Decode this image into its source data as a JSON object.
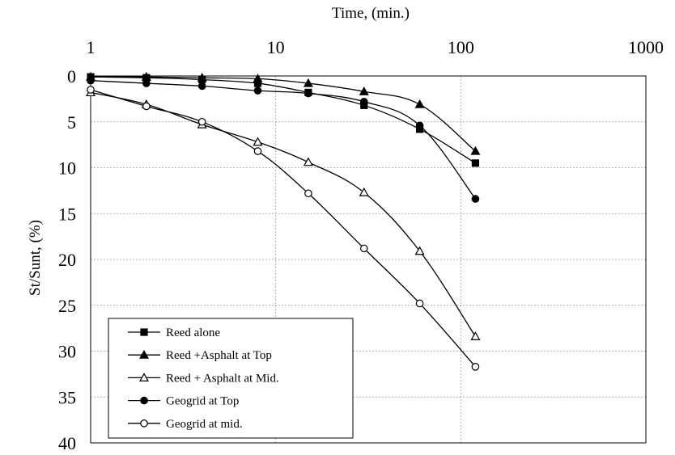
{
  "chart_data": {
    "type": "line",
    "xlabel": "Time, (min.)",
    "ylabel": "St/Sunt, (%)",
    "x_scale": "log",
    "xlim": [
      1,
      1000
    ],
    "ylim": [
      40,
      0
    ],
    "y_inverted": true,
    "x_ticks": [
      "1",
      "10",
      "100",
      "1000"
    ],
    "y_ticks": [
      "0",
      "5",
      "10",
      "15",
      "20",
      "25",
      "30",
      "35",
      "40"
    ],
    "grid": true,
    "legend_position": "bottom-left",
    "series": [
      {
        "name": "Reed alone",
        "marker": "filled-square",
        "x": [
          1,
          2,
          4,
          8,
          15,
          30,
          60,
          120
        ],
        "y": [
          0.1,
          0.2,
          0.4,
          0.8,
          1.8,
          3.2,
          5.8,
          9.5
        ]
      },
      {
        "name": "Reed +Asphalt at Top",
        "marker": "filled-triangle",
        "x": [
          1,
          2,
          4,
          8,
          15,
          30,
          60,
          120
        ],
        "y": [
          0.1,
          0.1,
          0.2,
          0.3,
          0.8,
          1.7,
          3.1,
          8.2
        ]
      },
      {
        "name": "Reed + Asphalt at Mid.",
        "marker": "open-triangle",
        "x": [
          1,
          2,
          4,
          8,
          15,
          30,
          60,
          120
        ],
        "y": [
          1.8,
          3.1,
          5.3,
          7.2,
          9.4,
          12.7,
          19.1,
          28.4
        ]
      },
      {
        "name": "Geogrid at Top",
        "marker": "filled-circle",
        "x": [
          1,
          2,
          4,
          8,
          15,
          30,
          60,
          120
        ],
        "y": [
          0.5,
          0.8,
          1.1,
          1.6,
          1.9,
          2.8,
          5.4,
          13.4
        ]
      },
      {
        "name": "Geogrid at mid.",
        "marker": "open-circle",
        "x": [
          1,
          2,
          4,
          8,
          15,
          30,
          60,
          120
        ],
        "y": [
          1.5,
          3.3,
          5.0,
          8.2,
          12.8,
          18.8,
          24.8,
          31.7
        ]
      }
    ]
  }
}
